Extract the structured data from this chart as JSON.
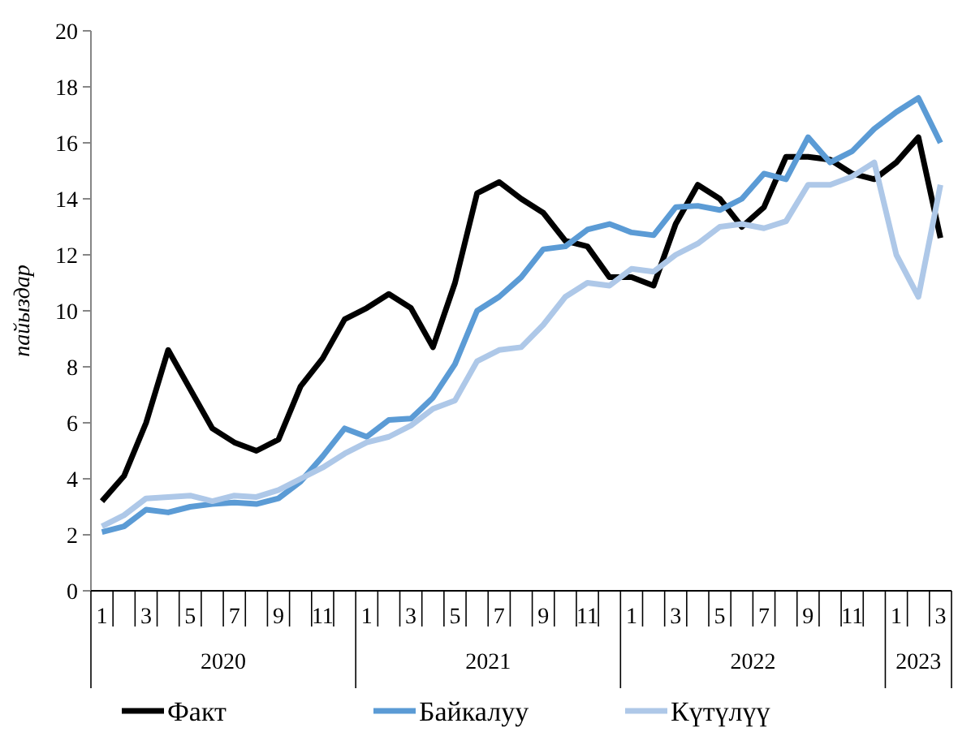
{
  "chart_data": {
    "type": "line",
    "ylabel": "пайыздар",
    "categories": [
      "1",
      null,
      "3",
      null,
      "5",
      null,
      "7",
      null,
      "9",
      null,
      "11",
      null,
      "1",
      null,
      "3",
      null,
      "5",
      null,
      "7",
      null,
      "9",
      null,
      "11",
      null,
      "1",
      null,
      "3",
      null,
      "5",
      null,
      "7",
      null,
      "9",
      null,
      "11",
      null,
      "1",
      null,
      "3"
    ],
    "annotations": [
      "2020",
      "2021",
      "2022",
      "2023"
    ],
    "series": [
      {
        "name": "Факт",
        "color": "#000000",
        "values": [
          3.2,
          4.1,
          6.0,
          8.6,
          7.2,
          5.8,
          5.3,
          5.0,
          5.4,
          7.3,
          8.3,
          9.7,
          10.1,
          10.6,
          10.1,
          8.7,
          11.0,
          14.2,
          14.6,
          14.0,
          13.5,
          12.5,
          12.3,
          11.2,
          11.2,
          10.9,
          13.1,
          14.5,
          14.0,
          13.0,
          13.7,
          15.5,
          15.5,
          15.4,
          14.9,
          14.7,
          15.3,
          16.2,
          12.6
        ]
      },
      {
        "name": "Байкалуу",
        "color": "#5b9bd5",
        "values": [
          2.1,
          2.3,
          2.9,
          2.8,
          3.0,
          3.1,
          3.15,
          3.1,
          3.3,
          3.9,
          4.8,
          5.8,
          5.5,
          6.1,
          6.15,
          6.9,
          8.1,
          10.0,
          10.5,
          11.2,
          12.2,
          12.3,
          12.9,
          13.1,
          12.8,
          12.7,
          13.7,
          13.75,
          13.6,
          14.0,
          14.9,
          14.7,
          16.2,
          15.3,
          15.7,
          16.5,
          17.1,
          17.6,
          16.0
        ]
      },
      {
        "name": "Күтүлүү",
        "color": "#aec8e8",
        "values": [
          2.3,
          2.7,
          3.3,
          3.35,
          3.4,
          3.2,
          3.4,
          3.35,
          3.6,
          4.0,
          4.4,
          4.9,
          5.3,
          5.5,
          5.9,
          6.5,
          6.8,
          8.2,
          8.6,
          8.7,
          9.5,
          10.5,
          11.0,
          10.9,
          11.5,
          11.4,
          12.0,
          12.4,
          13.0,
          13.1,
          12.95,
          13.2,
          14.5,
          14.5,
          14.8,
          15.3,
          12.0,
          10.5,
          14.5
        ]
      }
    ],
    "ylim": [
      0,
      20
    ],
    "yticks": [
      0,
      2,
      4,
      6,
      8,
      10,
      12,
      14,
      16,
      18,
      20
    ],
    "grid": false,
    "legend": "bottom",
    "line_style": "solid"
  }
}
